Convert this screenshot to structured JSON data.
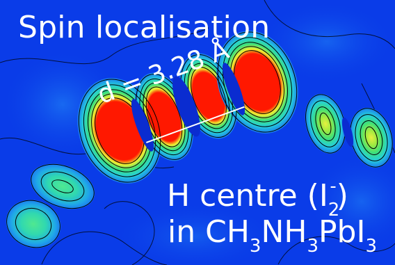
{
  "title": "Spin localisation",
  "distance": {
    "label": "d = 3.28 Å"
  },
  "center": {
    "prefix": "H centre (I",
    "sub": "2",
    "sup": "-",
    "suffix": ")"
  },
  "material": {
    "prefix": "in CH",
    "parts": [
      {
        "sub": "3",
        "text": "NH"
      },
      {
        "sub": "3",
        "text": "PbI"
      },
      {
        "sub": "3",
        "text": ""
      }
    ]
  },
  "colors": {
    "background": "#0a3ce8",
    "low": "#1a7af0",
    "mid": "#26d0d8",
    "high_green": "#3ee07a",
    "yellow": "#f0f030",
    "peak": "#ff1800",
    "contour": "#000000"
  }
}
